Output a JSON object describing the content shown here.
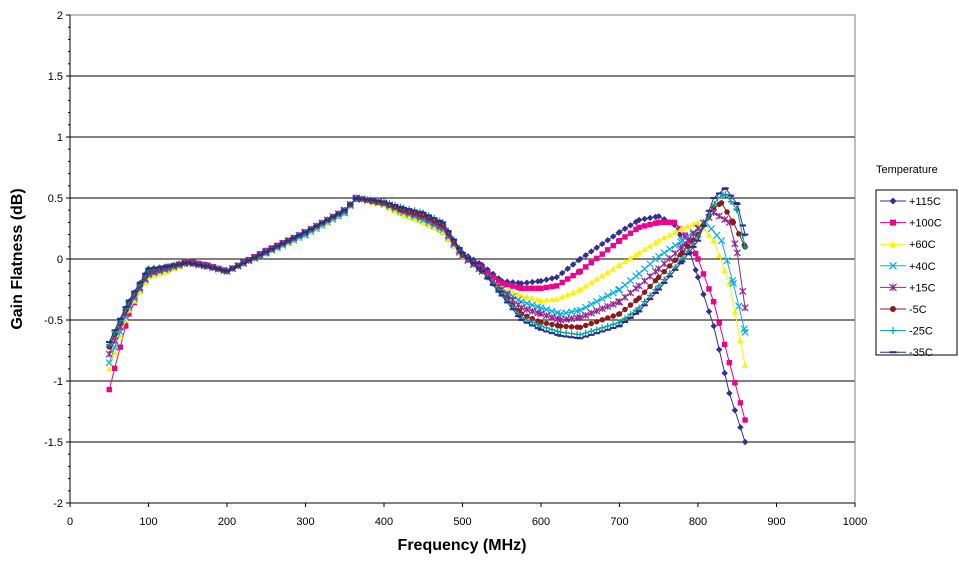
{
  "chart_data": {
    "type": "line",
    "title": "",
    "xlabel": "Frequency (MHz)",
    "ylabel": "Gain Flatness (dB)",
    "xlim": [
      0,
      1000
    ],
    "ylim": [
      -2,
      2
    ],
    "xticks": [
      "0",
      "100",
      "200",
      "300",
      "400",
      "500",
      "600",
      "700",
      "800",
      "900",
      "1000"
    ],
    "yticks": [
      "-2",
      "-1.5",
      "-1",
      "-0.5",
      "0",
      "0.5",
      "1",
      "1.5",
      "2"
    ],
    "grid": "horizontal",
    "legend_title": "Temperature",
    "legend_position": "right",
    "series": [
      {
        "name": "+115C",
        "color": "#2e3192",
        "marker": "diamond",
        "points": [
          [
            50,
            -0.72
          ],
          [
            75,
            -0.35
          ],
          [
            100,
            -0.08
          ],
          [
            125,
            -0.06
          ],
          [
            150,
            -0.02
          ],
          [
            175,
            -0.05
          ],
          [
            200,
            -0.1
          ],
          [
            250,
            0.05
          ],
          [
            300,
            0.2
          ],
          [
            350,
            0.38
          ],
          [
            365,
            0.5
          ],
          [
            400,
            0.45
          ],
          [
            425,
            0.4
          ],
          [
            450,
            0.35
          ],
          [
            475,
            0.25
          ],
          [
            500,
            0.05
          ],
          [
            525,
            -0.05
          ],
          [
            550,
            -0.18
          ],
          [
            575,
            -0.2
          ],
          [
            600,
            -0.18
          ],
          [
            620,
            -0.15
          ],
          [
            650,
            0.0
          ],
          [
            700,
            0.22
          ],
          [
            725,
            0.32
          ],
          [
            750,
            0.35
          ],
          [
            770,
            0.28
          ],
          [
            790,
            0.05
          ],
          [
            800,
            -0.15
          ],
          [
            820,
            -0.55
          ],
          [
            840,
            -1.1
          ],
          [
            860,
            -1.5
          ]
        ]
      },
      {
        "name": "+100C",
        "color": "#ec008c",
        "marker": "square",
        "points": [
          [
            50,
            -1.07
          ],
          [
            75,
            -0.45
          ],
          [
            100,
            -0.12
          ],
          [
            125,
            -0.08
          ],
          [
            150,
            -0.02
          ],
          [
            175,
            -0.05
          ],
          [
            200,
            -0.1
          ],
          [
            250,
            0.07
          ],
          [
            300,
            0.22
          ],
          [
            350,
            0.4
          ],
          [
            365,
            0.5
          ],
          [
            400,
            0.45
          ],
          [
            425,
            0.38
          ],
          [
            450,
            0.32
          ],
          [
            475,
            0.22
          ],
          [
            500,
            0.02
          ],
          [
            525,
            -0.08
          ],
          [
            550,
            -0.2
          ],
          [
            575,
            -0.24
          ],
          [
            600,
            -0.24
          ],
          [
            620,
            -0.22
          ],
          [
            650,
            -0.1
          ],
          [
            700,
            0.15
          ],
          [
            725,
            0.26
          ],
          [
            750,
            0.3
          ],
          [
            770,
            0.3
          ],
          [
            790,
            0.15
          ],
          [
            800,
            0.0
          ],
          [
            820,
            -0.35
          ],
          [
            840,
            -0.85
          ],
          [
            860,
            -1.32
          ]
        ]
      },
      {
        "name": "+60C",
        "color": "#fff200",
        "marker": "triangle",
        "points": [
          [
            50,
            -0.9
          ],
          [
            75,
            -0.42
          ],
          [
            100,
            -0.15
          ],
          [
            125,
            -0.1
          ],
          [
            150,
            -0.03
          ],
          [
            175,
            -0.06
          ],
          [
            200,
            -0.1
          ],
          [
            250,
            0.05
          ],
          [
            300,
            0.2
          ],
          [
            350,
            0.38
          ],
          [
            365,
            0.5
          ],
          [
            400,
            0.44
          ],
          [
            425,
            0.36
          ],
          [
            450,
            0.3
          ],
          [
            475,
            0.22
          ],
          [
            500,
            0.02
          ],
          [
            525,
            -0.1
          ],
          [
            550,
            -0.24
          ],
          [
            575,
            -0.3
          ],
          [
            600,
            -0.34
          ],
          [
            620,
            -0.33
          ],
          [
            650,
            -0.25
          ],
          [
            700,
            -0.05
          ],
          [
            725,
            0.05
          ],
          [
            750,
            0.15
          ],
          [
            780,
            0.25
          ],
          [
            800,
            0.3
          ],
          [
            820,
            0.15
          ],
          [
            840,
            -0.2
          ],
          [
            860,
            -0.87
          ]
        ]
      },
      {
        "name": "+40C",
        "color": "#00aeef",
        "marker": "x",
        "points": [
          [
            50,
            -0.85
          ],
          [
            75,
            -0.4
          ],
          [
            100,
            -0.13
          ],
          [
            125,
            -0.08
          ],
          [
            150,
            -0.03
          ],
          [
            175,
            -0.06
          ],
          [
            200,
            -0.1
          ],
          [
            250,
            0.05
          ],
          [
            300,
            0.2
          ],
          [
            350,
            0.38
          ],
          [
            365,
            0.5
          ],
          [
            400,
            0.45
          ],
          [
            425,
            0.38
          ],
          [
            450,
            0.32
          ],
          [
            475,
            0.24
          ],
          [
            500,
            0.02
          ],
          [
            525,
            -0.1
          ],
          [
            550,
            -0.25
          ],
          [
            575,
            -0.35
          ],
          [
            600,
            -0.4
          ],
          [
            625,
            -0.45
          ],
          [
            650,
            -0.42
          ],
          [
            700,
            -0.25
          ],
          [
            725,
            -0.12
          ],
          [
            750,
            0.02
          ],
          [
            780,
            0.15
          ],
          [
            810,
            0.3
          ],
          [
            830,
            0.15
          ],
          [
            845,
            -0.2
          ],
          [
            860,
            -0.6
          ]
        ]
      },
      {
        "name": "+15C",
        "color": "#92278f",
        "marker": "asterisk",
        "points": [
          [
            50,
            -0.78
          ],
          [
            75,
            -0.38
          ],
          [
            100,
            -0.12
          ],
          [
            125,
            -0.07
          ],
          [
            150,
            -0.03
          ],
          [
            175,
            -0.06
          ],
          [
            200,
            -0.1
          ],
          [
            250,
            0.06
          ],
          [
            300,
            0.22
          ],
          [
            350,
            0.4
          ],
          [
            365,
            0.5
          ],
          [
            400,
            0.46
          ],
          [
            425,
            0.4
          ],
          [
            450,
            0.35
          ],
          [
            475,
            0.26
          ],
          [
            500,
            0.03
          ],
          [
            525,
            -0.1
          ],
          [
            550,
            -0.25
          ],
          [
            575,
            -0.4
          ],
          [
            600,
            -0.45
          ],
          [
            625,
            -0.5
          ],
          [
            650,
            -0.48
          ],
          [
            700,
            -0.35
          ],
          [
            725,
            -0.22
          ],
          [
            750,
            -0.08
          ],
          [
            780,
            0.1
          ],
          [
            800,
            0.25
          ],
          [
            820,
            0.38
          ],
          [
            840,
            0.3
          ],
          [
            850,
            0.05
          ],
          [
            860,
            -0.4
          ]
        ]
      },
      {
        "name": "-5C",
        "color": "#8b1a1a",
        "marker": "circle",
        "points": [
          [
            50,
            -0.72
          ],
          [
            75,
            -0.36
          ],
          [
            100,
            -0.1
          ],
          [
            125,
            -0.06
          ],
          [
            150,
            -0.03
          ],
          [
            175,
            -0.06
          ],
          [
            200,
            -0.1
          ],
          [
            250,
            0.06
          ],
          [
            300,
            0.22
          ],
          [
            350,
            0.4
          ],
          [
            365,
            0.5
          ],
          [
            400,
            0.46
          ],
          [
            425,
            0.4
          ],
          [
            450,
            0.36
          ],
          [
            475,
            0.28
          ],
          [
            500,
            0.04
          ],
          [
            525,
            -0.1
          ],
          [
            550,
            -0.28
          ],
          [
            575,
            -0.45
          ],
          [
            600,
            -0.52
          ],
          [
            625,
            -0.55
          ],
          [
            650,
            -0.56
          ],
          [
            700,
            -0.45
          ],
          [
            725,
            -0.32
          ],
          [
            750,
            -0.15
          ],
          [
            780,
            0.05
          ],
          [
            800,
            0.2
          ],
          [
            820,
            0.42
          ],
          [
            830,
            0.46
          ],
          [
            845,
            0.3
          ],
          [
            860,
            0.1
          ]
        ]
      },
      {
        "name": "-25C",
        "color": "#00a19a",
        "marker": "plus",
        "points": [
          [
            50,
            -0.7
          ],
          [
            75,
            -0.35
          ],
          [
            100,
            -0.09
          ],
          [
            125,
            -0.06
          ],
          [
            150,
            -0.03
          ],
          [
            175,
            -0.06
          ],
          [
            200,
            -0.1
          ],
          [
            250,
            0.06
          ],
          [
            300,
            0.22
          ],
          [
            350,
            0.4
          ],
          [
            365,
            0.5
          ],
          [
            400,
            0.47
          ],
          [
            425,
            0.42
          ],
          [
            450,
            0.38
          ],
          [
            475,
            0.3
          ],
          [
            500,
            0.05
          ],
          [
            525,
            -0.1
          ],
          [
            550,
            -0.28
          ],
          [
            575,
            -0.48
          ],
          [
            600,
            -0.55
          ],
          [
            625,
            -0.6
          ],
          [
            650,
            -0.62
          ],
          [
            700,
            -0.52
          ],
          [
            725,
            -0.4
          ],
          [
            750,
            -0.22
          ],
          [
            780,
            0.0
          ],
          [
            800,
            0.18
          ],
          [
            825,
            0.5
          ],
          [
            835,
            0.53
          ],
          [
            850,
            0.4
          ],
          [
            860,
            0.1
          ]
        ]
      },
      {
        "name": "-35C",
        "color": "#2b2b8f",
        "marker": "dash",
        "points": [
          [
            50,
            -0.68
          ],
          [
            75,
            -0.34
          ],
          [
            100,
            -0.08
          ],
          [
            125,
            -0.06
          ],
          [
            150,
            -0.03
          ],
          [
            175,
            -0.06
          ],
          [
            200,
            -0.1
          ],
          [
            250,
            0.06
          ],
          [
            300,
            0.22
          ],
          [
            350,
            0.4
          ],
          [
            365,
            0.5
          ],
          [
            400,
            0.47
          ],
          [
            425,
            0.42
          ],
          [
            450,
            0.38
          ],
          [
            475,
            0.3
          ],
          [
            500,
            0.05
          ],
          [
            525,
            -0.1
          ],
          [
            550,
            -0.3
          ],
          [
            575,
            -0.5
          ],
          [
            600,
            -0.58
          ],
          [
            625,
            -0.63
          ],
          [
            650,
            -0.65
          ],
          [
            700,
            -0.55
          ],
          [
            725,
            -0.43
          ],
          [
            750,
            -0.25
          ],
          [
            780,
            -0.02
          ],
          [
            800,
            0.15
          ],
          [
            820,
            0.5
          ],
          [
            835,
            0.58
          ],
          [
            850,
            0.45
          ],
          [
            860,
            0.2
          ]
        ]
      }
    ]
  }
}
